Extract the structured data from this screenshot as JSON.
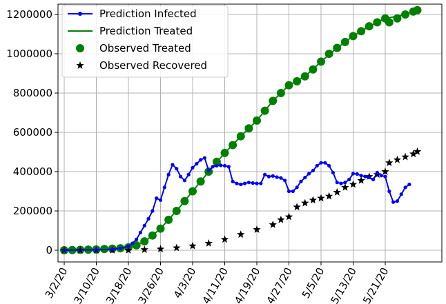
{
  "chart_data": {
    "type": "line",
    "title": "",
    "xlabel": "",
    "ylabel": "",
    "grid": true,
    "legend_placement": "top-left",
    "ylim": [
      0,
      1300000
    ],
    "x_ticks": [
      "3/2/20",
      "3/10/20",
      "3/18/20",
      "3/26/20",
      "4/3/20",
      "4/11/20",
      "4/19/20",
      "4/27/20",
      "5/5/20",
      "5/13/20",
      "5/21/20"
    ],
    "y_ticks": [
      0,
      200000,
      400000,
      600000,
      800000,
      1000000,
      1200000
    ],
    "y_tick_labels": [
      "0",
      "200000",
      "400000",
      "600000",
      "800000",
      "1000000",
      "1200000"
    ],
    "x_start": "2020-03-02",
    "x_end": "2020-05-29",
    "series": [
      {
        "name": "Prediction Infected",
        "color": "#0000ff",
        "style": "line-dot",
        "points": [
          [
            "2020-03-02",
            0
          ],
          [
            "2020-03-10",
            2000
          ],
          [
            "2020-03-14",
            5000
          ],
          [
            "2020-03-16",
            10000
          ],
          [
            "2020-03-18",
            20000
          ],
          [
            "2020-03-19",
            35000
          ],
          [
            "2020-03-20",
            55000
          ],
          [
            "2020-03-21",
            90000
          ],
          [
            "2020-03-22",
            125000
          ],
          [
            "2020-03-23",
            160000
          ],
          [
            "2020-03-24",
            200000
          ],
          [
            "2020-03-25",
            265000
          ],
          [
            "2020-03-26",
            255000
          ],
          [
            "2020-03-27",
            320000
          ],
          [
            "2020-03-28",
            385000
          ],
          [
            "2020-03-29",
            435000
          ],
          [
            "2020-03-30",
            415000
          ],
          [
            "2020-03-31",
            375000
          ],
          [
            "2020-04-01",
            355000
          ],
          [
            "2020-04-02",
            385000
          ],
          [
            "2020-04-03",
            420000
          ],
          [
            "2020-04-04",
            440000
          ],
          [
            "2020-04-05",
            460000
          ],
          [
            "2020-04-06",
            470000
          ],
          [
            "2020-04-07",
            405000
          ],
          [
            "2020-04-08",
            425000
          ],
          [
            "2020-04-09",
            430000
          ],
          [
            "2020-04-10",
            432000
          ],
          [
            "2020-04-11",
            430000
          ],
          [
            "2020-04-12",
            425000
          ],
          [
            "2020-04-13",
            350000
          ],
          [
            "2020-04-14",
            340000
          ],
          [
            "2020-04-15",
            335000
          ],
          [
            "2020-04-16",
            340000
          ],
          [
            "2020-04-17",
            345000
          ],
          [
            "2020-04-18",
            342000
          ],
          [
            "2020-04-19",
            340000
          ],
          [
            "2020-04-20",
            340000
          ],
          [
            "2020-04-21",
            385000
          ],
          [
            "2020-04-22",
            375000
          ],
          [
            "2020-04-23",
            378000
          ],
          [
            "2020-04-24",
            372000
          ],
          [
            "2020-04-25",
            368000
          ],
          [
            "2020-04-26",
            355000
          ],
          [
            "2020-04-27",
            300000
          ],
          [
            "2020-04-28",
            300000
          ],
          [
            "2020-04-29",
            320000
          ],
          [
            "2020-04-30",
            350000
          ],
          [
            "2020-05-01",
            370000
          ],
          [
            "2020-05-02",
            390000
          ],
          [
            "2020-05-03",
            405000
          ],
          [
            "2020-05-04",
            430000
          ],
          [
            "2020-05-05",
            445000
          ],
          [
            "2020-05-06",
            445000
          ],
          [
            "2020-05-07",
            430000
          ],
          [
            "2020-05-08",
            395000
          ],
          [
            "2020-05-09",
            345000
          ],
          [
            "2020-05-10",
            340000
          ],
          [
            "2020-05-11",
            345000
          ],
          [
            "2020-05-12",
            360000
          ],
          [
            "2020-05-13",
            390000
          ],
          [
            "2020-05-14",
            388000
          ],
          [
            "2020-05-15",
            380000
          ],
          [
            "2020-05-16",
            375000
          ],
          [
            "2020-05-17",
            370000
          ],
          [
            "2020-05-18",
            360000
          ],
          [
            "2020-05-19",
            395000
          ],
          [
            "2020-05-20",
            380000
          ],
          [
            "2020-05-21",
            375000
          ],
          [
            "2020-05-22",
            300000
          ],
          [
            "2020-05-23",
            245000
          ],
          [
            "2020-05-24",
            250000
          ],
          [
            "2020-05-25",
            285000
          ],
          [
            "2020-05-26",
            320000
          ],
          [
            "2020-05-27",
            335000
          ]
        ]
      },
      {
        "name": "Prediction Treated",
        "color": "#008000",
        "style": "line",
        "points": [
          [
            "2020-03-02",
            0
          ],
          [
            "2020-03-15",
            5000
          ],
          [
            "2020-03-18",
            12000
          ],
          [
            "2020-03-20",
            25000
          ],
          [
            "2020-03-22",
            45000
          ],
          [
            "2020-03-24",
            75000
          ],
          [
            "2020-03-26",
            110000
          ],
          [
            "2020-03-28",
            155000
          ],
          [
            "2020-03-31",
            225000
          ],
          [
            "2020-04-03",
            300000
          ],
          [
            "2020-04-07",
            400000
          ],
          [
            "2020-04-11",
            495000
          ],
          [
            "2020-04-15",
            580000
          ],
          [
            "2020-04-19",
            660000
          ],
          [
            "2020-04-23",
            760000
          ],
          [
            "2020-04-27",
            840000
          ],
          [
            "2020-05-01",
            885000
          ],
          [
            "2020-05-05",
            960000
          ],
          [
            "2020-05-09",
            1030000
          ],
          [
            "2020-05-13",
            1090000
          ],
          [
            "2020-05-17",
            1140000
          ],
          [
            "2020-05-21",
            1180000
          ],
          [
            "2020-05-25",
            1195000
          ],
          [
            "2020-05-29",
            1222000
          ]
        ]
      },
      {
        "name": "Observed Treated",
        "color": "#008000",
        "style": "dot",
        "points": [
          [
            "2020-03-02",
            0
          ],
          [
            "2020-03-04",
            1000
          ],
          [
            "2020-03-06",
            2000
          ],
          [
            "2020-03-08",
            3000
          ],
          [
            "2020-03-10",
            4000
          ],
          [
            "2020-03-12",
            6000
          ],
          [
            "2020-03-14",
            8000
          ],
          [
            "2020-03-16",
            10000
          ],
          [
            "2020-03-18",
            15000
          ],
          [
            "2020-03-20",
            25000
          ],
          [
            "2020-03-22",
            45000
          ],
          [
            "2020-03-24",
            75000
          ],
          [
            "2020-03-26",
            110000
          ],
          [
            "2020-03-28",
            155000
          ],
          [
            "2020-03-30",
            200000
          ],
          [
            "2020-04-01",
            250000
          ],
          [
            "2020-04-03",
            300000
          ],
          [
            "2020-04-05",
            350000
          ],
          [
            "2020-04-07",
            400000
          ],
          [
            "2020-04-09",
            450000
          ],
          [
            "2020-04-11",
            495000
          ],
          [
            "2020-04-13",
            535000
          ],
          [
            "2020-04-15",
            580000
          ],
          [
            "2020-04-17",
            620000
          ],
          [
            "2020-04-19",
            660000
          ],
          [
            "2020-04-21",
            710000
          ],
          [
            "2020-04-23",
            760000
          ],
          [
            "2020-04-25",
            800000
          ],
          [
            "2020-04-27",
            840000
          ],
          [
            "2020-04-29",
            860000
          ],
          [
            "2020-05-01",
            885000
          ],
          [
            "2020-05-03",
            920000
          ],
          [
            "2020-05-05",
            960000
          ],
          [
            "2020-05-07",
            1000000
          ],
          [
            "2020-05-09",
            1030000
          ],
          [
            "2020-05-11",
            1060000
          ],
          [
            "2020-05-13",
            1090000
          ],
          [
            "2020-05-15",
            1115000
          ],
          [
            "2020-05-17",
            1140000
          ],
          [
            "2020-05-19",
            1160000
          ],
          [
            "2020-05-21",
            1180000
          ],
          [
            "2020-05-22",
            1160000
          ],
          [
            "2020-05-24",
            1180000
          ],
          [
            "2020-05-26",
            1200000
          ],
          [
            "2020-05-28",
            1215000
          ],
          [
            "2020-05-29",
            1222000
          ]
        ]
      },
      {
        "name": "Observed Recovered",
        "color": "#000000",
        "style": "star",
        "points": [
          [
            "2020-03-02",
            0
          ],
          [
            "2020-03-06",
            0
          ],
          [
            "2020-03-10",
            0
          ],
          [
            "2020-03-14",
            0
          ],
          [
            "2020-03-18",
            0
          ],
          [
            "2020-03-22",
            3000
          ],
          [
            "2020-03-26",
            6000
          ],
          [
            "2020-03-30",
            12000
          ],
          [
            "2020-04-03",
            22000
          ],
          [
            "2020-04-07",
            35000
          ],
          [
            "2020-04-11",
            55000
          ],
          [
            "2020-04-15",
            80000
          ],
          [
            "2020-04-19",
            105000
          ],
          [
            "2020-04-23",
            130000
          ],
          [
            "2020-04-25",
            155000
          ],
          [
            "2020-04-27",
            170000
          ],
          [
            "2020-04-29",
            220000
          ],
          [
            "2020-05-01",
            240000
          ],
          [
            "2020-05-03",
            255000
          ],
          [
            "2020-05-05",
            265000
          ],
          [
            "2020-05-07",
            275000
          ],
          [
            "2020-05-09",
            295000
          ],
          [
            "2020-05-11",
            320000
          ],
          [
            "2020-05-13",
            335000
          ],
          [
            "2020-05-15",
            355000
          ],
          [
            "2020-05-17",
            375000
          ],
          [
            "2020-05-19",
            385000
          ],
          [
            "2020-05-21",
            400000
          ],
          [
            "2020-05-22",
            445000
          ],
          [
            "2020-05-24",
            460000
          ],
          [
            "2020-05-26",
            475000
          ],
          [
            "2020-05-28",
            490000
          ],
          [
            "2020-05-29",
            502000
          ]
        ]
      }
    ]
  },
  "legend": {
    "items": [
      {
        "label": "Prediction Infected",
        "color": "#0000ff",
        "style": "line-dot"
      },
      {
        "label": "Prediction Treated",
        "color": "#008000",
        "style": "line"
      },
      {
        "label": "Observed Treated",
        "color": "#008000",
        "style": "dot"
      },
      {
        "label": "Observed Recovered",
        "color": "#000000",
        "style": "star"
      }
    ]
  }
}
